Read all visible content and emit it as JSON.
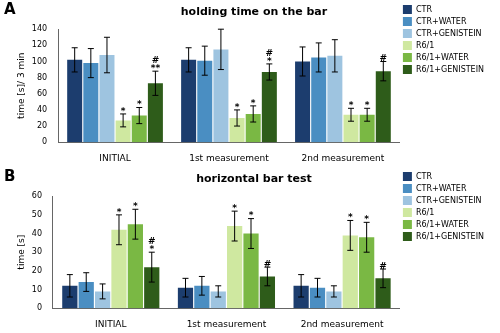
{
  "chart_data": [
    {
      "type": "bar",
      "panel_label": "A",
      "title": "holding time on the bar",
      "ylabel": "time [s]/ 3 min",
      "categories": [
        "INITIAL",
        "1st measurement",
        "2nd measurement"
      ],
      "ylim": [
        0,
        140
      ],
      "yticks": [
        0,
        20,
        40,
        60,
        80,
        100,
        120,
        140
      ],
      "grid": false,
      "legend": "right",
      "series": [
        {
          "name": "CTR",
          "color": "#1c3d6e",
          "values": [
            102,
            102,
            100
          ],
          "errors": [
            15,
            15,
            18
          ],
          "annotations": [
            null,
            null,
            null
          ]
        },
        {
          "name": "CTR+WATER",
          "color": "#4a8ec2",
          "values": [
            98,
            101,
            105
          ],
          "errors": [
            18,
            18,
            18
          ],
          "annotations": [
            null,
            null,
            null
          ]
        },
        {
          "name": "CTR+GENISTEIN",
          "color": "#9ec4e0",
          "values": [
            108,
            115,
            107
          ],
          "errors": [
            22,
            25,
            20
          ],
          "annotations": [
            null,
            null,
            null
          ]
        },
        {
          "name": "R6/1",
          "color": "#cfe8a0",
          "values": [
            27,
            30,
            34
          ],
          "errors": [
            8,
            10,
            8
          ],
          "annotations": [
            [
              "*"
            ],
            [
              "*"
            ],
            [
              "*"
            ]
          ]
        },
        {
          "name": "R6/1+WATER",
          "color": "#7ab844",
          "values": [
            33,
            35,
            34
          ],
          "errors": [
            10,
            10,
            8
          ],
          "annotations": [
            [
              "*"
            ],
            [
              "*"
            ],
            [
              "*"
            ]
          ]
        },
        {
          "name": "R6/1+GENISTEIN",
          "color": "#2e5c1a",
          "values": [
            73,
            87,
            88
          ],
          "errors": [
            15,
            10,
            12
          ],
          "annotations": [
            [
              "**",
              "#"
            ],
            [
              "*",
              "#"
            ],
            [
              "#"
            ]
          ]
        }
      ]
    },
    {
      "type": "bar",
      "panel_label": "B",
      "title": "horizontal bar test",
      "ylabel": "time [s]",
      "categories": [
        "INITIAL",
        "1st measurement",
        "2nd measurement"
      ],
      "ylim": [
        0,
        60
      ],
      "yticks": [
        0,
        10,
        20,
        30,
        40,
        50,
        60
      ],
      "grid": false,
      "legend": "right",
      "series": [
        {
          "name": "CTR",
          "color": "#1c3d6e",
          "values": [
            12,
            11,
            12
          ],
          "errors": [
            6,
            5,
            6
          ],
          "annotations": [
            null,
            null,
            null
          ]
        },
        {
          "name": "CTR+WATER",
          "color": "#4a8ec2",
          "values": [
            14,
            12,
            11
          ],
          "errors": [
            5,
            5,
            5
          ],
          "annotations": [
            null,
            null,
            null
          ]
        },
        {
          "name": "CTR+GENISTEIN",
          "color": "#9ec4e0",
          "values": [
            9,
            9,
            9
          ],
          "errors": [
            4,
            3,
            3
          ],
          "annotations": [
            null,
            null,
            null
          ]
        },
        {
          "name": "R6/1",
          "color": "#cfe8a0",
          "values": [
            42,
            44,
            39
          ],
          "errors": [
            8,
            8,
            8
          ],
          "annotations": [
            [
              "*"
            ],
            [
              "*"
            ],
            [
              "*"
            ]
          ]
        },
        {
          "name": "R6/1+WATER",
          "color": "#7ab844",
          "values": [
            45,
            40,
            38
          ],
          "errors": [
            8,
            8,
            8
          ],
          "annotations": [
            [
              "*"
            ],
            [
              "*"
            ],
            [
              "*"
            ]
          ]
        },
        {
          "name": "R6/1+GENISTEIN",
          "color": "#2e5c1a",
          "values": [
            22,
            17,
            16
          ],
          "errors": [
            8,
            5,
            5
          ],
          "annotations": [
            [
              "*",
              "#"
            ],
            [
              "#"
            ],
            [
              "#"
            ]
          ]
        }
      ]
    }
  ]
}
